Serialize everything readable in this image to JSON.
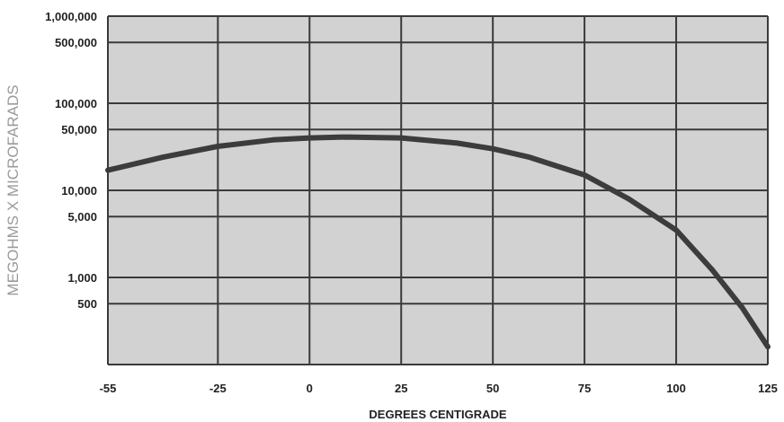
{
  "colors": {
    "plot_fill": "#d2d2d2",
    "grid_line": "#3a3a3a",
    "curve": "#3c3c3c",
    "text": "#222222",
    "ylabel_text": "#9a9a9a"
  },
  "chart_data": {
    "type": "line",
    "xlabel": "DEGREES CENTIGRADE",
    "ylabel": "MEGOHMS X MICROFARADS",
    "y_scale": "log",
    "xlim": [
      -55,
      125
    ],
    "ylim": [
      100,
      1000000
    ],
    "grid": true,
    "x_ticks": [
      -55,
      -25,
      0,
      25,
      50,
      75,
      100,
      125
    ],
    "x_tick_labels": [
      "-55",
      "-25",
      "0",
      "25",
      "50",
      "75",
      "100",
      "125"
    ],
    "y_gridlines": [
      500,
      1000,
      5000,
      10000,
      50000,
      100000,
      500000,
      1000000
    ],
    "y_tick_labels": [
      {
        "value": 500,
        "label": "500"
      },
      {
        "value": 1000,
        "label": "1,000"
      },
      {
        "value": 5000,
        "label": "5,000"
      },
      {
        "value": 10000,
        "label": "10,000"
      },
      {
        "value": 50000,
        "label": "50,000"
      },
      {
        "value": 100000,
        "label": "100,000"
      },
      {
        "value": 500000,
        "label": "500,000"
      },
      {
        "value": 1000000,
        "label": "1,000,000"
      }
    ],
    "series": [
      {
        "points": [
          {
            "x": -55,
            "y": 17000
          },
          {
            "x": -40,
            "y": 24000
          },
          {
            "x": -25,
            "y": 32000
          },
          {
            "x": -10,
            "y": 38000
          },
          {
            "x": 0,
            "y": 40000
          },
          {
            "x": 10,
            "y": 41000
          },
          {
            "x": 25,
            "y": 40000
          },
          {
            "x": 40,
            "y": 35000
          },
          {
            "x": 50,
            "y": 30000
          },
          {
            "x": 60,
            "y": 24000
          },
          {
            "x": 75,
            "y": 15000
          },
          {
            "x": 87,
            "y": 8000
          },
          {
            "x": 100,
            "y": 3500
          },
          {
            "x": 110,
            "y": 1200
          },
          {
            "x": 118,
            "y": 450
          },
          {
            "x": 125,
            "y": 160
          }
        ]
      }
    ]
  }
}
